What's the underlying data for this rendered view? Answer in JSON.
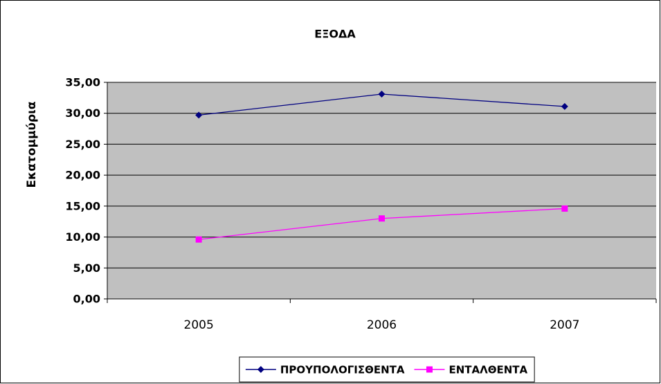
{
  "chart_data": {
    "type": "line",
    "title": "ΕΞΟΔΑ",
    "y_label": "Εκατομμύρια",
    "categories": [
      "2005",
      "2006",
      "2007"
    ],
    "series": [
      {
        "name": "ΠΡΟΥΠΟΛΟΓΙΣΘΕΝΤΑ",
        "color": "#000080",
        "marker": "diamond",
        "values": [
          29.7,
          33.1,
          31.1
        ]
      },
      {
        "name": "ΕΝΤΑΛΘΕΝΤΑ",
        "color": "#ff00ff",
        "marker": "square",
        "values": [
          9.6,
          13.0,
          14.6
        ]
      }
    ],
    "ylim": [
      0,
      35
    ],
    "yticks": [
      {
        "value": 0,
        "label": "0,00"
      },
      {
        "value": 5,
        "label": "5,00"
      },
      {
        "value": 10,
        "label": "10,00"
      },
      {
        "value": 15,
        "label": "15,00"
      },
      {
        "value": 20,
        "label": "20,00"
      },
      {
        "value": 25,
        "label": "25,00"
      },
      {
        "value": 30,
        "label": "30,00"
      },
      {
        "value": 35,
        "label": "35,00"
      }
    ],
    "grid": true,
    "plot_background": "#c0c0c0",
    "legend": "bottom"
  }
}
